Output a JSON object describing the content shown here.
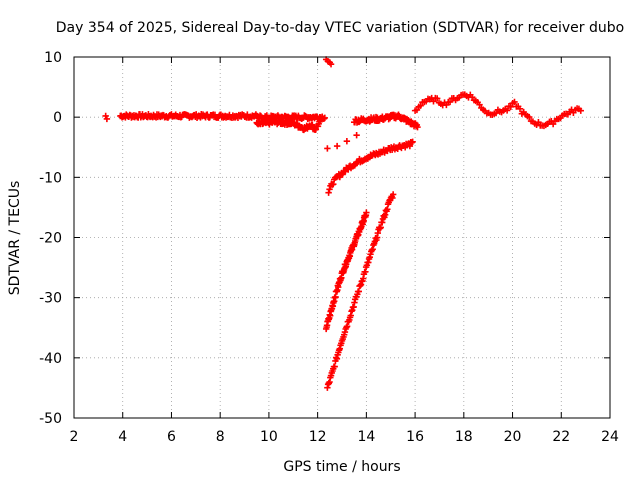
{
  "chart_data": {
    "type": "scatter",
    "title": "Day 354 of 2025, Sidereal Day-to-day VTEC variation (SDTVAR) for receiver dubo",
    "xlabel": "GPS time / hours",
    "ylabel": "SDTVAR / TECUs",
    "xlim": [
      2,
      24
    ],
    "ylim": [
      -50,
      10
    ],
    "xticks": [
      2,
      4,
      6,
      8,
      10,
      12,
      14,
      16,
      18,
      20,
      22,
      24
    ],
    "yticks": [
      10,
      0,
      -10,
      -20,
      -30,
      -40,
      -50
    ],
    "xtick_labels": [
      "2",
      "4",
      "6",
      "8",
      "10",
      "12",
      "14",
      "16",
      "18",
      "20",
      "22",
      "24"
    ],
    "ytick_labels": [
      "10",
      "0",
      "-10",
      "-20",
      "-30",
      "-40",
      "-50"
    ],
    "grid": true,
    "marker": "plus",
    "color": "#ff0000",
    "series": [
      {
        "name": "isolated-point",
        "x": [
          3.3,
          3.35
        ],
        "y": [
          0.2,
          -0.3
        ]
      },
      {
        "name": "baseline-early",
        "x_range": [
          3.9,
          9.6
        ],
        "y_center": 0.2,
        "y_spread": 0.6
      },
      {
        "name": "baseline-scatter-low",
        "x": [
          9.5,
          10.2,
          11.0,
          11.3,
          11.5,
          11.7,
          11.9,
          12.0,
          12.1
        ],
        "y": [
          -1.2,
          -0.8,
          -1.0,
          -1.6,
          -1.9,
          -1.2,
          -2.0,
          -1.4,
          -0.9
        ]
      },
      {
        "name": "baseline-late-morning",
        "x_range": [
          9.6,
          12.3
        ],
        "y_center": 0.0,
        "y_spread": 0.6
      },
      {
        "name": "spike-top",
        "x": [
          12.35,
          12.42,
          12.5,
          12.55
        ],
        "y": [
          9.6,
          9.3,
          9.1,
          8.8
        ]
      },
      {
        "name": "short-rise",
        "x": [
          12.4,
          12.8,
          13.2,
          13.6
        ],
        "y": [
          -5.2,
          -4.8,
          -4.0,
          -3.0
        ]
      },
      {
        "name": "long-recovery",
        "x": [
          12.45,
          12.6,
          12.8,
          13.0,
          13.3,
          13.6,
          14.0,
          14.5,
          15.0,
          15.4,
          15.7,
          15.9
        ],
        "y": [
          -12.5,
          -11.0,
          -10.0,
          -9.3,
          -8.3,
          -7.5,
          -6.7,
          -6.0,
          -5.2,
          -4.8,
          -4.6,
          -4.4
        ]
      },
      {
        "name": "steep-branch-a",
        "x": [
          12.35,
          12.5,
          12.7,
          13.0,
          13.3,
          13.6,
          13.9,
          14.0
        ],
        "y": [
          -35.0,
          -33.0,
          -30.0,
          -26.0,
          -23.0,
          -20.0,
          -17.0,
          -16.0
        ]
      },
      {
        "name": "steep-branch-b",
        "x": [
          12.4,
          12.6,
          13.0,
          13.5,
          14.0,
          14.5,
          15.0,
          15.1
        ],
        "y": [
          -45.0,
          -42.5,
          -37.0,
          -31.0,
          -25.0,
          -19.0,
          -13.5,
          -13.0
        ]
      },
      {
        "name": "afternoon-rise",
        "x": [
          13.5,
          14.0,
          14.5,
          15.0,
          15.3,
          15.6,
          15.8,
          16.0,
          16.1
        ],
        "y": [
          -0.6,
          -0.4,
          -0.3,
          0.0,
          0.2,
          -0.4,
          -0.9,
          -1.3,
          -1.6
        ]
      },
      {
        "name": "evening-band",
        "x": [
          16.0,
          16.3,
          16.8,
          17.2,
          17.6,
          18.0,
          18.3,
          18.7,
          19.0,
          19.4,
          19.8,
          20.1,
          20.4,
          20.8,
          21.2,
          21.6,
          22.0,
          22.4,
          22.8
        ],
        "y": [
          1.0,
          2.5,
          3.0,
          2.2,
          3.0,
          3.8,
          3.5,
          1.8,
          0.6,
          0.9,
          1.3,
          2.3,
          0.8,
          -0.7,
          -1.3,
          -1.0,
          0.2,
          0.9,
          1.4
        ]
      }
    ]
  }
}
